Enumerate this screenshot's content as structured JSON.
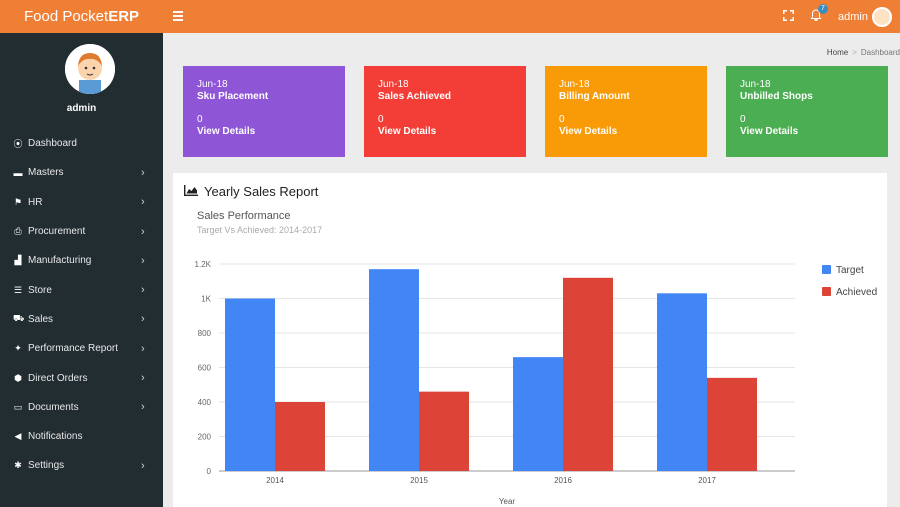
{
  "brand": {
    "name": "Food Pocket",
    "name_bold": "ERP"
  },
  "topbar": {
    "notification_count": "7",
    "user": "admin"
  },
  "sidebar": {
    "user": "admin",
    "items": [
      {
        "label": "Dashboard",
        "icon": "dashboard-icon",
        "glyph": "⦿",
        "arrow": false
      },
      {
        "label": "Masters",
        "icon": "briefcase-icon",
        "glyph": "▬",
        "arrow": true
      },
      {
        "label": "HR",
        "icon": "flag-icon",
        "glyph": "⚑",
        "arrow": true
      },
      {
        "label": "Procurement",
        "icon": "print-icon",
        "glyph": "⎙",
        "arrow": true
      },
      {
        "label": "Manufacturing",
        "icon": "industry-icon",
        "glyph": "▟",
        "arrow": true
      },
      {
        "label": "Store",
        "icon": "tasks-icon",
        "glyph": "☰",
        "arrow": true
      },
      {
        "label": "Sales",
        "icon": "cart-icon",
        "glyph": "⛟",
        "arrow": true
      },
      {
        "label": "Performance Report",
        "icon": "gift-icon",
        "glyph": "✦",
        "arrow": true
      },
      {
        "label": "Direct Orders",
        "icon": "cube-icon",
        "glyph": "⬢",
        "arrow": true
      },
      {
        "label": "Documents",
        "icon": "folder-icon",
        "glyph": "▭",
        "arrow": true
      },
      {
        "label": "Notifications",
        "icon": "bullhorn-icon",
        "glyph": "◀",
        "arrow": false
      },
      {
        "label": "Settings",
        "icon": "gear-icon",
        "glyph": "✱",
        "arrow": true
      }
    ]
  },
  "breadcrumb": {
    "home": "Home",
    "sep": ">",
    "current": "Dashboard"
  },
  "cards": [
    {
      "period": "Jun-18",
      "title": "Sku Placement",
      "value": "0",
      "link": "View Details",
      "color": "#8e55d6"
    },
    {
      "period": "Jun-18",
      "title": "Sales Achieved",
      "value": "0",
      "link": "View Details",
      "color": "#f23e36"
    },
    {
      "period": "Jun-18",
      "title": "Billing Amount",
      "value": "0",
      "link": "View Details",
      "color": "#f99a07"
    },
    {
      "period": "Jun-18",
      "title": "Unbilled Shops",
      "value": "0",
      "link": "View Details",
      "color": "#4cae52"
    }
  ],
  "panel": {
    "title": "Yearly Sales Report"
  },
  "chart_data": {
    "type": "bar",
    "title": "Sales Performance",
    "subtitle": "Target Vs Achieved: 2014-2017",
    "xlabel": "Year",
    "ylabel": "",
    "categories": [
      "2014",
      "2015",
      "2016",
      "2017"
    ],
    "series": [
      {
        "name": "Target",
        "values": [
          1000,
          1170,
          660,
          1030
        ],
        "color": "#4285f4"
      },
      {
        "name": "Achieved",
        "values": [
          400,
          460,
          1120,
          540
        ],
        "color": "#db4437"
      }
    ],
    "ylim": [
      0,
      1200
    ],
    "yticks": [
      0,
      200,
      400,
      600,
      800,
      1000,
      1200
    ],
    "ytick_labels": [
      "0",
      "200",
      "400",
      "600",
      "800",
      "1K",
      "1.2K"
    ],
    "grid": true,
    "legend": "right"
  }
}
